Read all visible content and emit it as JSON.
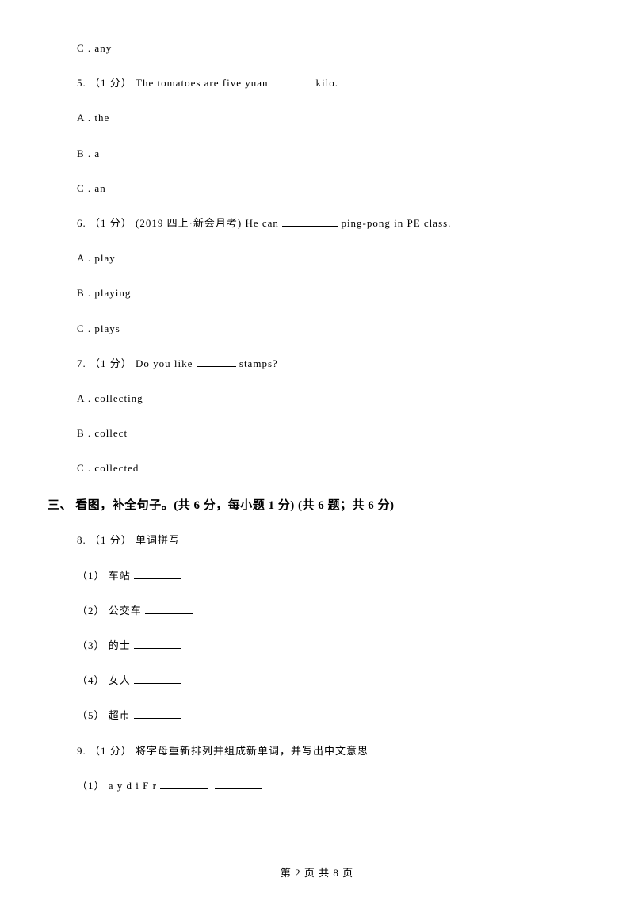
{
  "q4": {
    "optC": "C . any"
  },
  "q5": {
    "stem_pre": "5. （1 分） The tomatoes are five yuan",
    "stem_post": "kilo.",
    "optA": "A . the",
    "optB": "B . a",
    "optC": "C . an"
  },
  "q6": {
    "stem_pre": "6. （1 分） (2019 四上·新会月考) He can ",
    "stem_post": " ping-pong in PE class.",
    "optA": "A . play",
    "optB": "B . playing",
    "optC": "C . plays"
  },
  "q7": {
    "stem_pre": "7. （1 分） Do you like ",
    "stem_post": " stamps?",
    "optA": "A . collecting",
    "optB": "B . collect",
    "optC": "C . collected"
  },
  "section3": {
    "header": "三、 看图，补全句子。(共 6 分，每小题 1 分) (共 6 题；共 6 分)"
  },
  "q8": {
    "stem": "8. （1 分） 单词拼写",
    "s1": "（1） 车站 ",
    "s2": "（2） 公交车 ",
    "s3": "（3） 的士 ",
    "s4": "（4） 女人 ",
    "s5": "（5） 超市 "
  },
  "q9": {
    "stem": "9. （1 分） 将字母重新排列并组成新单词，并写出中文意思",
    "s1": "（1） a y d i F r "
  },
  "footer": "第 2 页 共 8 页"
}
